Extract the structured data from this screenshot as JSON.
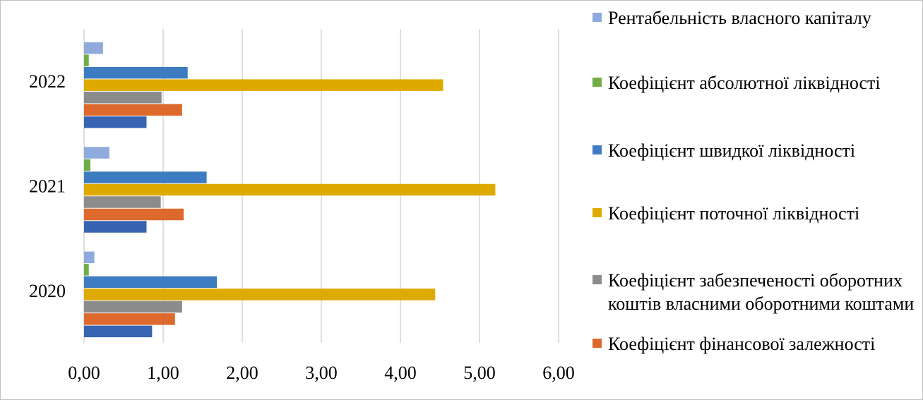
{
  "chart_data": {
    "type": "hbar",
    "categories": [
      "2020",
      "2021",
      "2022"
    ],
    "series": [
      {
        "name": "Рентабельність власного капіталу",
        "color": "#8faadc",
        "values": [
          0.13,
          0.32,
          0.24
        ]
      },
      {
        "name": "Коефіцієнт абсолютної ліквідності",
        "color": "#70ad47",
        "values": [
          0.06,
          0.08,
          0.06
        ]
      },
      {
        "name": "Коефіцієнт швидкої ліквідності",
        "color": "#3d7cc0",
        "values": [
          1.68,
          1.55,
          1.31
        ]
      },
      {
        "name": "Коефіцієнт поточної ліквідності",
        "color": "#dfaa00",
        "values": [
          4.44,
          5.2,
          4.54
        ]
      },
      {
        "name": "Коефіцієнт забезпеченості оборотних коштів власними оборотними коштами",
        "color": "#8c8c8c",
        "values": [
          1.24,
          0.97,
          0.98
        ]
      },
      {
        "name": "Коефіцієнт фінансової залежності",
        "color": "#dd6a2c",
        "values": [
          1.15,
          1.26,
          1.24
        ]
      },
      {
        "name": null,
        "color": "#3763b2",
        "values": [
          0.86,
          0.79,
          0.79
        ]
      }
    ],
    "xlim": [
      0,
      6
    ],
    "xticks": [
      {
        "value": 0,
        "label": "0,00"
      },
      {
        "value": 1,
        "label": "1,00"
      },
      {
        "value": 2,
        "label": "2,00"
      },
      {
        "value": 3,
        "label": "3,00"
      },
      {
        "value": 4,
        "label": "4,00"
      },
      {
        "value": 5,
        "label": "5,00"
      },
      {
        "value": 6,
        "label": "6,00"
      }
    ],
    "grid": true
  }
}
